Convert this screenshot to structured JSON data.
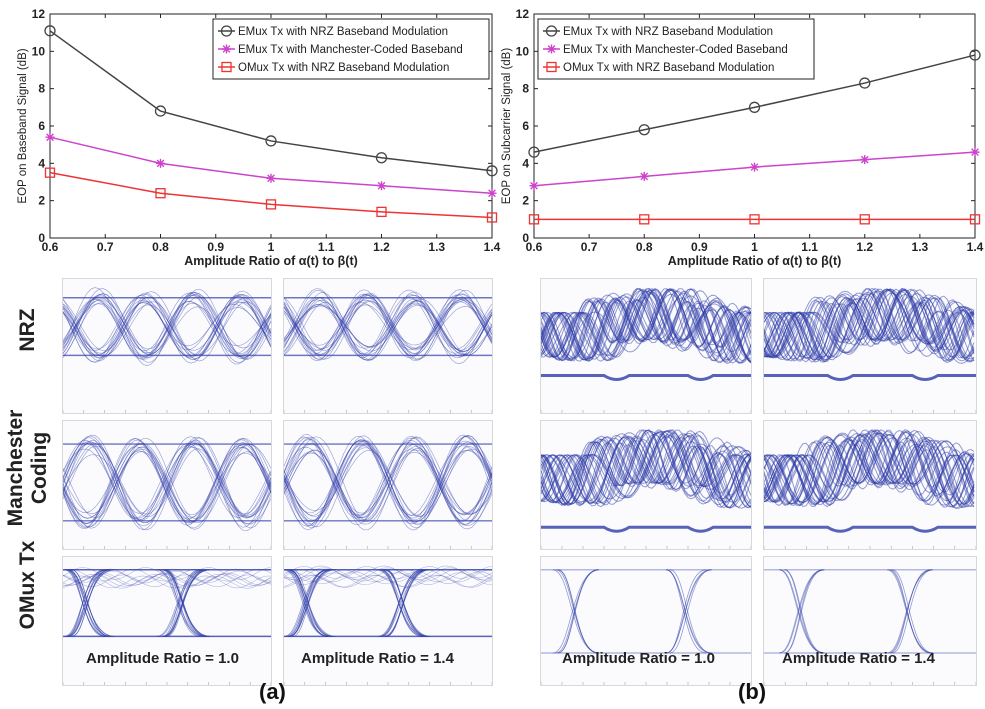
{
  "chart_data": [
    {
      "type": "line",
      "panel": "(a)",
      "xlabel": "Amplitude Ratio of α(t) to β(t)",
      "ylabel": "EOP on Baseband Signal (dB)",
      "xlim": [
        0.6,
        1.4
      ],
      "ylim": [
        0,
        12
      ],
      "xticks": [
        0.6,
        0.7,
        0.8,
        0.9,
        1,
        1.1,
        1.2,
        1.3,
        1.4
      ],
      "xtick_labels": [
        "0.6",
        "0.7",
        "0.8",
        "0.9",
        "1",
        "1.1",
        "1.2",
        "1.3",
        "1.4"
      ],
      "yticks": [
        0,
        2,
        4,
        6,
        8,
        10,
        12
      ],
      "ytick_labels": [
        "0",
        "2",
        "4",
        "6",
        "8",
        "10",
        "12"
      ],
      "legend_position": "top-right",
      "grid": false,
      "x": [
        0.6,
        0.8,
        1.0,
        1.2,
        1.4
      ],
      "series": [
        {
          "name": "EMux Tx with NRZ Baseband Modulation",
          "marker": "circle",
          "color": "#444444",
          "values": [
            11.1,
            6.8,
            5.2,
            4.3,
            3.6
          ]
        },
        {
          "name": "EMux Tx with Manchester-Coded Baseband",
          "marker": "star",
          "color": "#cc44cc",
          "values": [
            5.4,
            4.0,
            3.2,
            2.8,
            2.4
          ]
        },
        {
          "name": "OMux Tx with NRZ Baseband Modulation",
          "marker": "square",
          "color": "#ee3333",
          "values": [
            3.5,
            2.4,
            1.8,
            1.4,
            1.1
          ]
        }
      ]
    },
    {
      "type": "line",
      "panel": "(b)",
      "xlabel": "Amplitude Ratio of α(t) to β(t)",
      "ylabel": "EOP on Subcarrier Signal (dB)",
      "xlim": [
        0.6,
        1.4
      ],
      "ylim": [
        0,
        12
      ],
      "xticks": [
        0.6,
        0.7,
        0.8,
        0.9,
        1,
        1.1,
        1.2,
        1.3,
        1.4
      ],
      "xtick_labels": [
        "0.6",
        "0.7",
        "0.8",
        "0.9",
        "1",
        "1.1",
        "1.2",
        "1.3",
        "1.4"
      ],
      "yticks": [
        0,
        2,
        4,
        6,
        8,
        10,
        12
      ],
      "ytick_labels": [
        "0",
        "2",
        "4",
        "6",
        "8",
        "10",
        "12"
      ],
      "legend_position": "top-left",
      "grid": false,
      "x": [
        0.6,
        0.8,
        1.0,
        1.2,
        1.4
      ],
      "series": [
        {
          "name": "EMux Tx with NRZ Baseband Modulation",
          "marker": "circle",
          "color": "#444444",
          "values": [
            4.6,
            5.8,
            7.0,
            8.3,
            9.8
          ]
        },
        {
          "name": "EMux Tx with Manchester-Coded Baseband",
          "marker": "star",
          "color": "#cc44cc",
          "values": [
            2.8,
            3.3,
            3.8,
            4.2,
            4.6
          ]
        },
        {
          "name": "OMux Tx with NRZ Baseband Modulation",
          "marker": "square",
          "color": "#ee3333",
          "values": [
            1.0,
            1.0,
            1.0,
            1.0,
            1.0
          ]
        }
      ]
    }
  ],
  "eye_diagrams": {
    "row_labels": [
      "NRZ",
      "Manchester Coding",
      "OMux Tx"
    ],
    "captions": [
      "Amplitude Ratio = 1.0",
      "Amplitude Ratio = 1.4",
      "Amplitude Ratio = 1.0",
      "Amplitude Ratio = 1.4"
    ],
    "trace_color": "#2e3ca8"
  },
  "panel_labels": [
    "(a)",
    "(b)"
  ]
}
